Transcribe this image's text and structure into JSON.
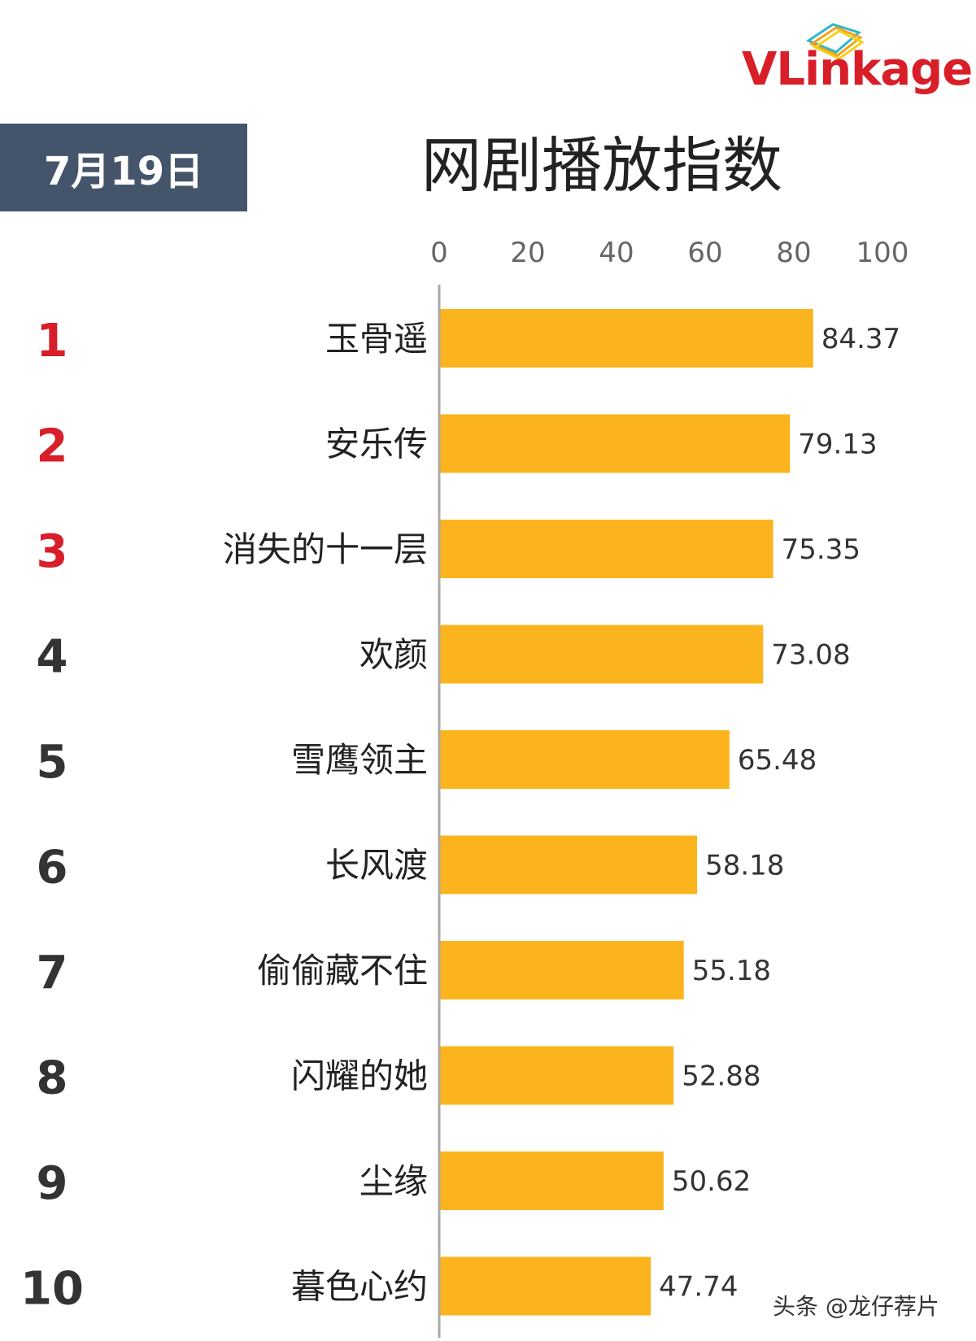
{
  "logo": {
    "text": "VLinkage",
    "color": "#d81e28"
  },
  "date_label": "7月19日",
  "title": "网剧播放指数",
  "watermark": "头条 @龙仔荐片",
  "colors": {
    "bar": "#fbb41e",
    "date_box": "#44546a",
    "top_rank": "#d81e28",
    "rank": "#333333",
    "axis": "#aaaaaa",
    "tick": "#666666"
  },
  "chart_data": {
    "type": "bar",
    "orientation": "horizontal",
    "title": "网剧播放指数",
    "xlim": [
      0,
      100
    ],
    "x_ticks": [
      "0",
      "20",
      "40",
      "60",
      "80",
      "100"
    ],
    "x_tick_values": [
      0,
      20,
      40,
      60,
      80,
      100
    ],
    "ranks": [
      "1",
      "2",
      "3",
      "4",
      "5",
      "6",
      "7",
      "8",
      "9",
      "10"
    ],
    "categories": [
      "玉骨遥",
      "安乐传",
      "消失的十一层",
      "欢颜",
      "雪鹰领主",
      "长风渡",
      "偷偷藏不住",
      "闪耀的她",
      "尘缘",
      "暮色心约"
    ],
    "values": [
      84.37,
      79.13,
      75.35,
      73.08,
      65.48,
      58.18,
      55.18,
      52.88,
      50.62,
      47.74
    ],
    "value_labels": [
      "84.37",
      "79.13",
      "75.35",
      "73.08",
      "65.48",
      "58.18",
      "55.18",
      "52.88",
      "50.62",
      "47.74"
    ],
    "grid": false,
    "legend": "none"
  }
}
